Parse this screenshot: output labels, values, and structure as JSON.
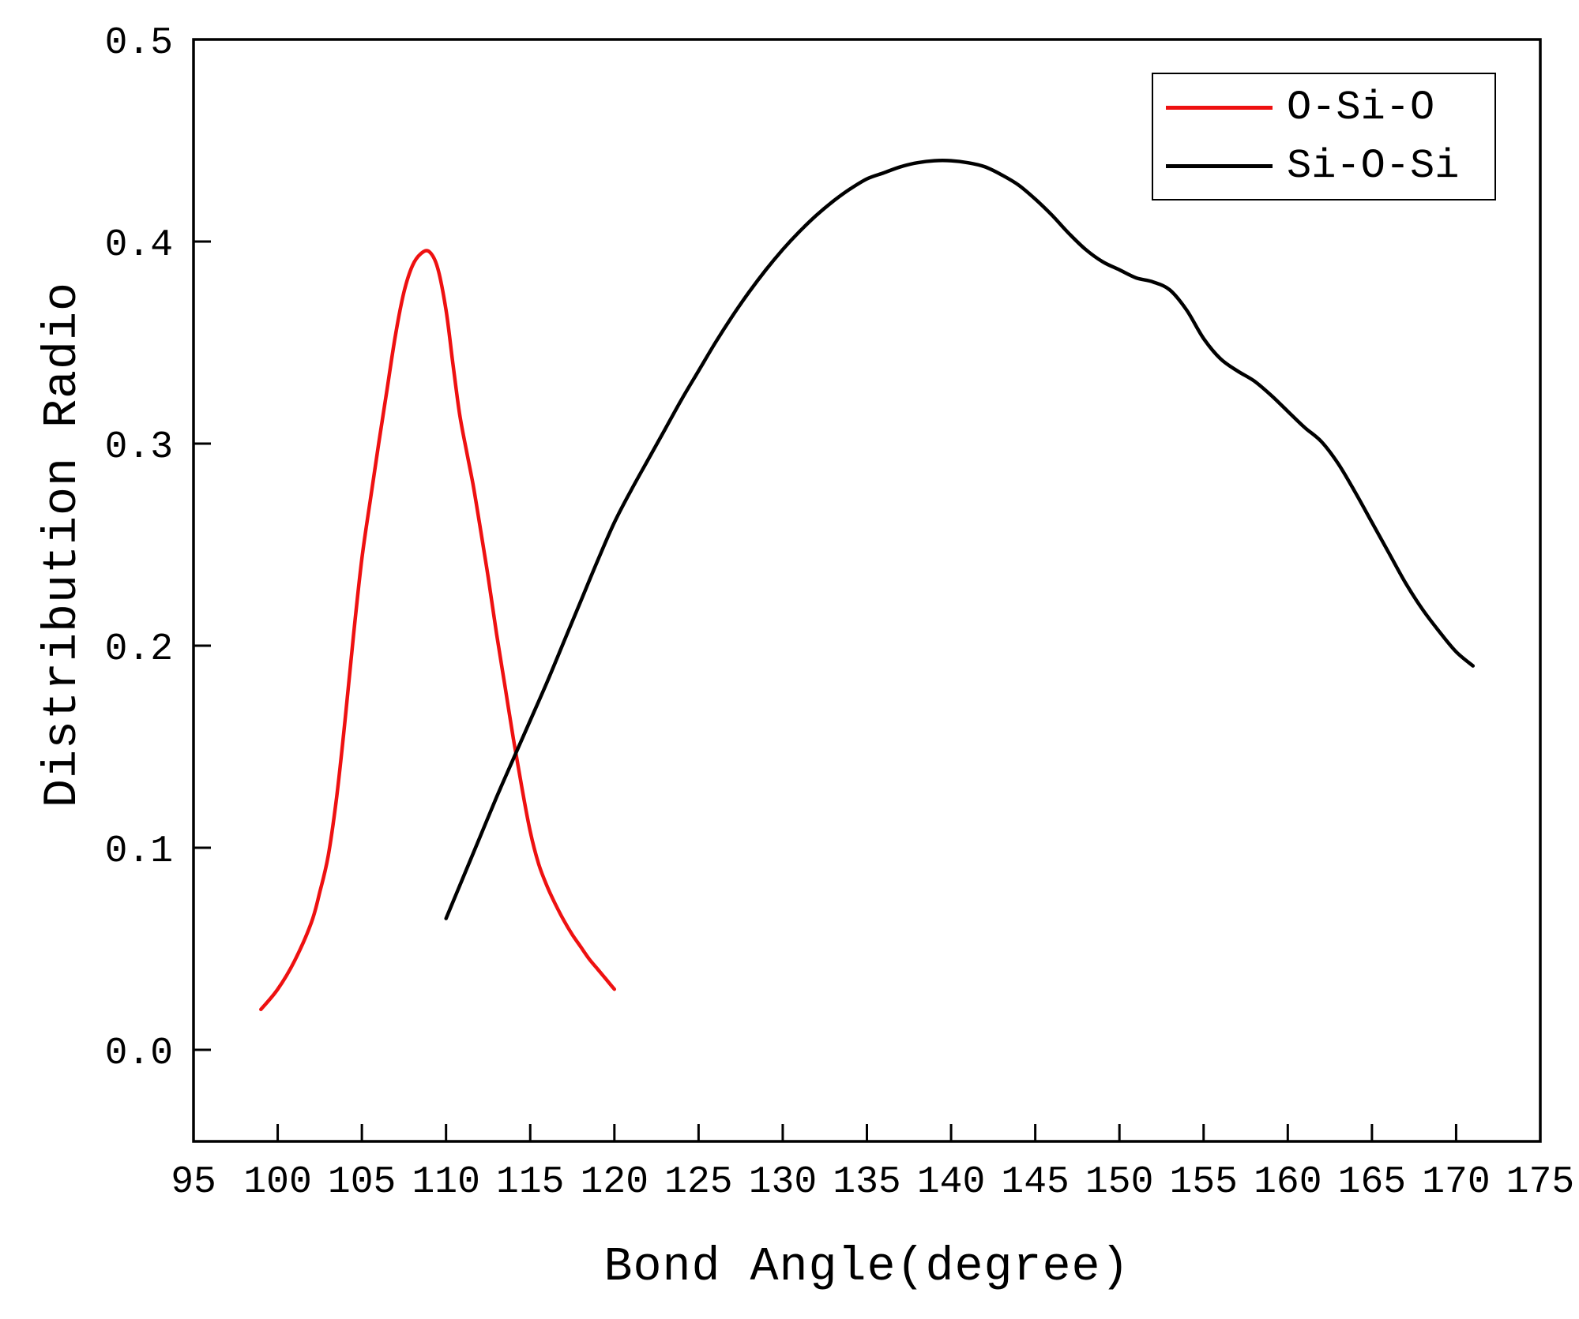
{
  "chart_data": {
    "type": "line",
    "title": "",
    "xlabel": "Bond Angle(degree)",
    "ylabel": "Distribution Radio",
    "xlim": [
      95,
      175
    ],
    "ylim": [
      -0.0453,
      0.5
    ],
    "xticks": [
      95,
      100,
      105,
      110,
      115,
      120,
      125,
      130,
      135,
      140,
      145,
      150,
      155,
      160,
      165,
      170,
      175
    ],
    "yticks": [
      0.0,
      0.1,
      0.2,
      0.3,
      0.4,
      0.5
    ],
    "ytick_labels": [
      "0.0",
      "0.1",
      "0.2",
      "0.3",
      "0.4",
      "0.5"
    ],
    "grid": false,
    "legend_position": "top-right",
    "series": [
      {
        "name": "O-Si-O",
        "color": "#ee1111",
        "points": [
          [
            99,
            0.02
          ],
          [
            100,
            0.03
          ],
          [
            101,
            0.044
          ],
          [
            102,
            0.063
          ],
          [
            102.5,
            0.078
          ],
          [
            103,
            0.096
          ],
          [
            103.5,
            0.125
          ],
          [
            104,
            0.163
          ],
          [
            104.5,
            0.205
          ],
          [
            105,
            0.243
          ],
          [
            105.5,
            0.272
          ],
          [
            106,
            0.3
          ],
          [
            106.5,
            0.327
          ],
          [
            107,
            0.354
          ],
          [
            107.5,
            0.375
          ],
          [
            108,
            0.388
          ],
          [
            108.5,
            0.394
          ],
          [
            109,
            0.395
          ],
          [
            109.5,
            0.387
          ],
          [
            110,
            0.366
          ],
          [
            110.4,
            0.34
          ],
          [
            110.8,
            0.315
          ],
          [
            111.2,
            0.297
          ],
          [
            111.6,
            0.28
          ],
          [
            112,
            0.26
          ],
          [
            112.5,
            0.234
          ],
          [
            113,
            0.206
          ],
          [
            113.5,
            0.18
          ],
          [
            114,
            0.154
          ],
          [
            114.5,
            0.13
          ],
          [
            115,
            0.108
          ],
          [
            115.5,
            0.092
          ],
          [
            116,
            0.081
          ],
          [
            116.5,
            0.072
          ],
          [
            117,
            0.064
          ],
          [
            117.5,
            0.057
          ],
          [
            118,
            0.051
          ],
          [
            118.5,
            0.045
          ],
          [
            119,
            0.04
          ],
          [
            119.5,
            0.035
          ],
          [
            120,
            0.03
          ]
        ]
      },
      {
        "name": "Si-O-Si",
        "color": "#000000",
        "points": [
          [
            110,
            0.065
          ],
          [
            111,
            0.085
          ],
          [
            112,
            0.105
          ],
          [
            113,
            0.125
          ],
          [
            114,
            0.144
          ],
          [
            115,
            0.163
          ],
          [
            116,
            0.182
          ],
          [
            117,
            0.202
          ],
          [
            118,
            0.222
          ],
          [
            119,
            0.242
          ],
          [
            120,
            0.261
          ],
          [
            121,
            0.277
          ],
          [
            122,
            0.292
          ],
          [
            123,
            0.307
          ],
          [
            124,
            0.322
          ],
          [
            125,
            0.336
          ],
          [
            126,
            0.35
          ],
          [
            127,
            0.363
          ],
          [
            128,
            0.375
          ],
          [
            129,
            0.386
          ],
          [
            130,
            0.396
          ],
          [
            131,
            0.405
          ],
          [
            132,
            0.413
          ],
          [
            133,
            0.42
          ],
          [
            134,
            0.426
          ],
          [
            135,
            0.431
          ],
          [
            136,
            0.434
          ],
          [
            137,
            0.437
          ],
          [
            138,
            0.439
          ],
          [
            139,
            0.44
          ],
          [
            140,
            0.44
          ],
          [
            141,
            0.439
          ],
          [
            142,
            0.437
          ],
          [
            143,
            0.433
          ],
          [
            144,
            0.428
          ],
          [
            145,
            0.421
          ],
          [
            146,
            0.413
          ],
          [
            147,
            0.404
          ],
          [
            148,
            0.396
          ],
          [
            149,
            0.39
          ],
          [
            150,
            0.386
          ],
          [
            151,
            0.382
          ],
          [
            152,
            0.38
          ],
          [
            153,
            0.376
          ],
          [
            154,
            0.366
          ],
          [
            155,
            0.352
          ],
          [
            156,
            0.342
          ],
          [
            157,
            0.336
          ],
          [
            158,
            0.331
          ],
          [
            159,
            0.324
          ],
          [
            160,
            0.316
          ],
          [
            161,
            0.308
          ],
          [
            162,
            0.301
          ],
          [
            163,
            0.29
          ],
          [
            164,
            0.276
          ],
          [
            165,
            0.261
          ],
          [
            166,
            0.246
          ],
          [
            167,
            0.231
          ],
          [
            168,
            0.218
          ],
          [
            169,
            0.207
          ],
          [
            170,
            0.197
          ],
          [
            171,
            0.19
          ]
        ]
      }
    ]
  }
}
